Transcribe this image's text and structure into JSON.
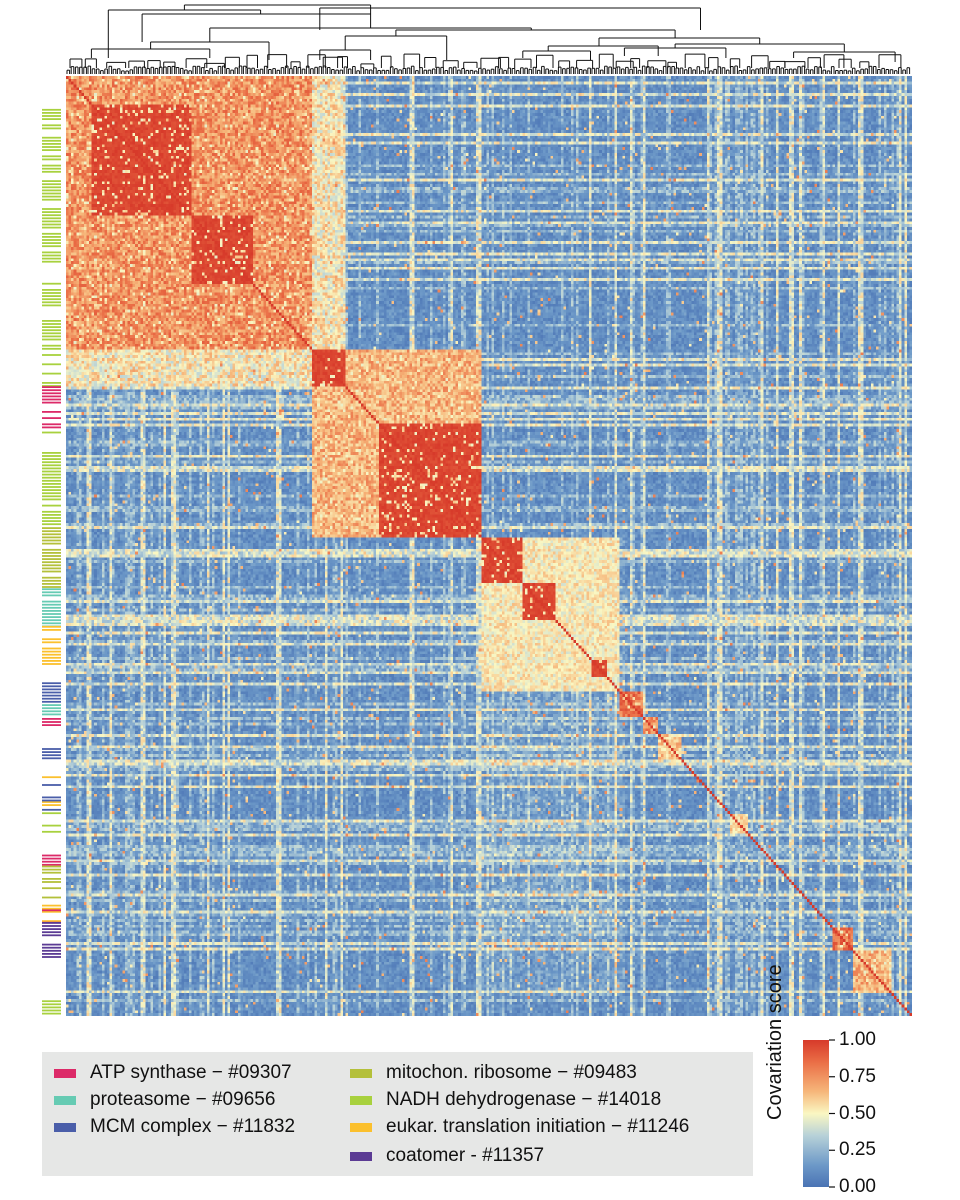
{
  "chart_data": {
    "type": "heatmap",
    "title": "",
    "matrix_size": 330,
    "value_range": [
      0,
      1
    ],
    "colormap": [
      "#4a73b4",
      "#6d99c8",
      "#b7d1d8",
      "#faf7c2",
      "#f6b67a",
      "#ea6e46",
      "#d73a2a"
    ],
    "blocks": [
      {
        "start": 0.0,
        "end": 0.29,
        "level": 0.88,
        "sub": [
          [
            0.03,
            0.15
          ],
          [
            0.15,
            0.22
          ],
          [
            0.03,
            0.12
          ]
        ]
      },
      {
        "start": 0.29,
        "end": 0.49,
        "level": 0.8,
        "sub": [
          [
            0.37,
            0.49
          ],
          [
            0.29,
            0.33
          ]
        ]
      },
      {
        "start": 0.49,
        "end": 0.655,
        "level": 0.65,
        "sub": [
          [
            0.49,
            0.54
          ],
          [
            0.54,
            0.58
          ],
          [
            0.62,
            0.64
          ]
        ]
      },
      {
        "start": 0.655,
        "end": 0.683,
        "level": 0.95,
        "sub": []
      },
      {
        "start": 0.683,
        "end": 0.7,
        "level": 0.9,
        "sub": []
      },
      {
        "start": 0.7,
        "end": 0.727,
        "level": 0.75,
        "sub": []
      },
      {
        "start": 0.785,
        "end": 0.805,
        "level": 0.7,
        "sub": []
      },
      {
        "start": 0.905,
        "end": 0.93,
        "level": 0.95,
        "sub": []
      },
      {
        "start": 0.93,
        "end": 0.975,
        "level": 0.8,
        "sub": []
      }
    ],
    "row_annotation": [
      {
        "from": 0.035,
        "to": 0.2,
        "complex": "NADH dehydrogenase − #14018",
        "density": 0.85
      },
      {
        "from": 0.22,
        "to": 0.33,
        "complex": "NADH dehydrogenase − #14018",
        "density": 0.7
      },
      {
        "from": 0.33,
        "to": 0.375,
        "complex": "ATP synthase − #09307",
        "density": 0.8
      },
      {
        "from": 0.375,
        "to": 0.39,
        "complex": "NADH dehydrogenase − #14018",
        "density": 0.3
      },
      {
        "from": 0.4,
        "to": 0.48,
        "complex": "NADH dehydrogenase − #14018",
        "density": 0.7
      },
      {
        "from": 0.48,
        "to": 0.545,
        "complex": "mitochon. ribosome − #09483",
        "density": 0.85
      },
      {
        "from": 0.545,
        "to": 0.585,
        "complex": "proteasome − #09656",
        "density": 0.9
      },
      {
        "from": 0.585,
        "to": 0.625,
        "complex": "eukar. translation initiation − #11246",
        "density": 0.9
      },
      {
        "from": 0.645,
        "to": 0.665,
        "complex": "MCM complex − #11832",
        "density": 0.9
      },
      {
        "from": 0.665,
        "to": 0.683,
        "complex": "proteasome − #09656",
        "density": 0.7
      },
      {
        "from": 0.683,
        "to": 0.69,
        "complex": "ATP synthase − #09307",
        "density": 0.9
      },
      {
        "from": 0.715,
        "to": 0.728,
        "complex": "MCM complex − #11832",
        "density": 0.9
      },
      {
        "from": 0.745,
        "to": 0.78,
        "complex": "eukar. translation initiation − #11246",
        "density": 0.5
      },
      {
        "from": 0.75,
        "to": 0.78,
        "complex": "MCM complex − #11832",
        "density": 0.4
      },
      {
        "from": 0.78,
        "to": 0.81,
        "complex": "NADH dehydrogenase − #14018",
        "density": 0.6
      },
      {
        "from": 0.825,
        "to": 0.84,
        "complex": "ATP synthase − #09307",
        "density": 0.9
      },
      {
        "from": 0.84,
        "to": 0.875,
        "complex": "mitochon. ribosome − #09483",
        "density": 0.6
      },
      {
        "from": 0.875,
        "to": 0.9,
        "complex": "eukar. translation initiation − #11246",
        "density": 0.5
      },
      {
        "from": 0.88,
        "to": 0.9,
        "complex": "ATP synthase − #09307",
        "density": 0.4
      },
      {
        "from": 0.9,
        "to": 0.94,
        "complex": "coatomer - #11357",
        "density": 0.9
      },
      {
        "from": 0.98,
        "to": 1.0,
        "complex": "NADH dehydrogenase − #14018",
        "density": 0.9
      }
    ],
    "colorbar": {
      "label": "Covariation score",
      "ticks": [
        {
          "value": 1.0,
          "label": "1.00"
        },
        {
          "value": 0.75,
          "label": "0.75"
        },
        {
          "value": 0.5,
          "label": "0.50"
        },
        {
          "value": 0.25,
          "label": "0.25"
        },
        {
          "value": 0.0,
          "label": "0.00"
        }
      ]
    },
    "legend": [
      {
        "label": "ATP synthase − #09307",
        "color": "#dc2a68"
      },
      {
        "label": "proteasome − #09656",
        "color": "#66cbb3"
      },
      {
        "label": "MCM complex − #11832",
        "color": "#4a5ea9"
      },
      {
        "label": "mitochon. ribosome − #09483",
        "color": "#b4c03a"
      },
      {
        "label": "NADH dehydrogenase − #14018",
        "color": "#a8d13e"
      },
      {
        "label": "eukar. translation initiation − #11246",
        "color": "#fbc02d"
      },
      {
        "label": "coatomer - #11357",
        "color": "#5b3b94"
      }
    ]
  }
}
